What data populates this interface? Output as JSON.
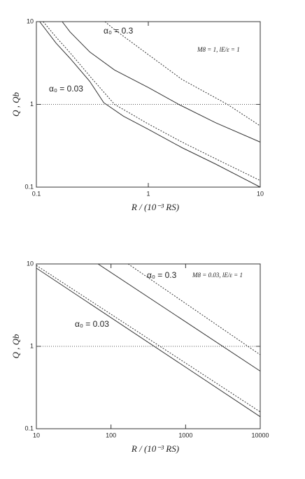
{
  "chart_data": [
    {
      "type": "line",
      "x_label": "R / (10⁻³ RS)",
      "y_label": "Q , Qb",
      "log_x": true,
      "log_y": true,
      "xlim": [
        0.1,
        10
      ],
      "ylim": [
        0.1,
        10
      ],
      "xticks": [
        0.1,
        1,
        10
      ],
      "yticks": [
        0.1,
        1,
        10
      ],
      "reference_line": 1,
      "annotations": [
        "α₀ = 0.3",
        "α₀ = 0.03",
        "M8 = 1, lE/ε = 1"
      ],
      "series": [
        {
          "color": "#333333",
          "dash": "solid",
          "x": [
            0.107,
            0.15,
            0.2,
            0.3,
            0.4,
            0.6,
            1,
            2,
            4,
            10
          ],
          "values": [
            10,
            5.5,
            3.6,
            1.9,
            1.05,
            0.72,
            0.5,
            0.3,
            0.19,
            0.1
          ]
        },
        {
          "color": "#333333",
          "dash": "dotted",
          "x": [
            0.115,
            0.15,
            0.2,
            0.3,
            0.5,
            1,
            2,
            4,
            10
          ],
          "values": [
            10,
            6.5,
            4.2,
            2.2,
            1,
            0.58,
            0.35,
            0.22,
            0.12
          ]
        },
        {
          "color": "#333333",
          "dash": "solid",
          "x": [
            0.17,
            0.2,
            0.3,
            0.5,
            1,
            1.87,
            4,
            10
          ],
          "values": [
            10,
            7.5,
            4.3,
            2.6,
            1.6,
            1,
            0.6,
            0.35
          ]
        },
        {
          "color": "#333333",
          "dash": "dotted",
          "x": [
            0.41,
            0.5,
            1,
            2,
            5.1,
            10
          ],
          "values": [
            10,
            8,
            4,
            2,
            1,
            0.55
          ]
        }
      ]
    },
    {
      "type": "line",
      "x_label": "R / (10⁻³ RS)",
      "y_label": "Q , Qb",
      "log_x": true,
      "log_y": true,
      "xlim": [
        10,
        10000
      ],
      "ylim": [
        0.1,
        10
      ],
      "xticks": [
        10,
        100,
        1000,
        10000
      ],
      "yticks": [
        0.1,
        1,
        10
      ],
      "reference_line": 1,
      "annotations": [
        "α₀ = 0.3",
        "α₀ = 0.03",
        "M8 = 0.03, lE/ε = 1"
      ],
      "series": [
        {
          "color": "#333333",
          "dash": "solid",
          "x": [
            10,
            10000
          ],
          "values": [
            8.9,
            0.14
          ]
        },
        {
          "color": "#333333",
          "dash": "dotted",
          "x": [
            10,
            10000
          ],
          "values": [
            9.6,
            0.16
          ]
        },
        {
          "color": "#333333",
          "dash": "solid",
          "x": [
            67,
            10000
          ],
          "values": [
            10,
            0.5
          ]
        },
        {
          "color": "#333333",
          "dash": "dotted",
          "x": [
            170,
            10000
          ],
          "values": [
            10,
            0.79
          ]
        }
      ]
    }
  ]
}
